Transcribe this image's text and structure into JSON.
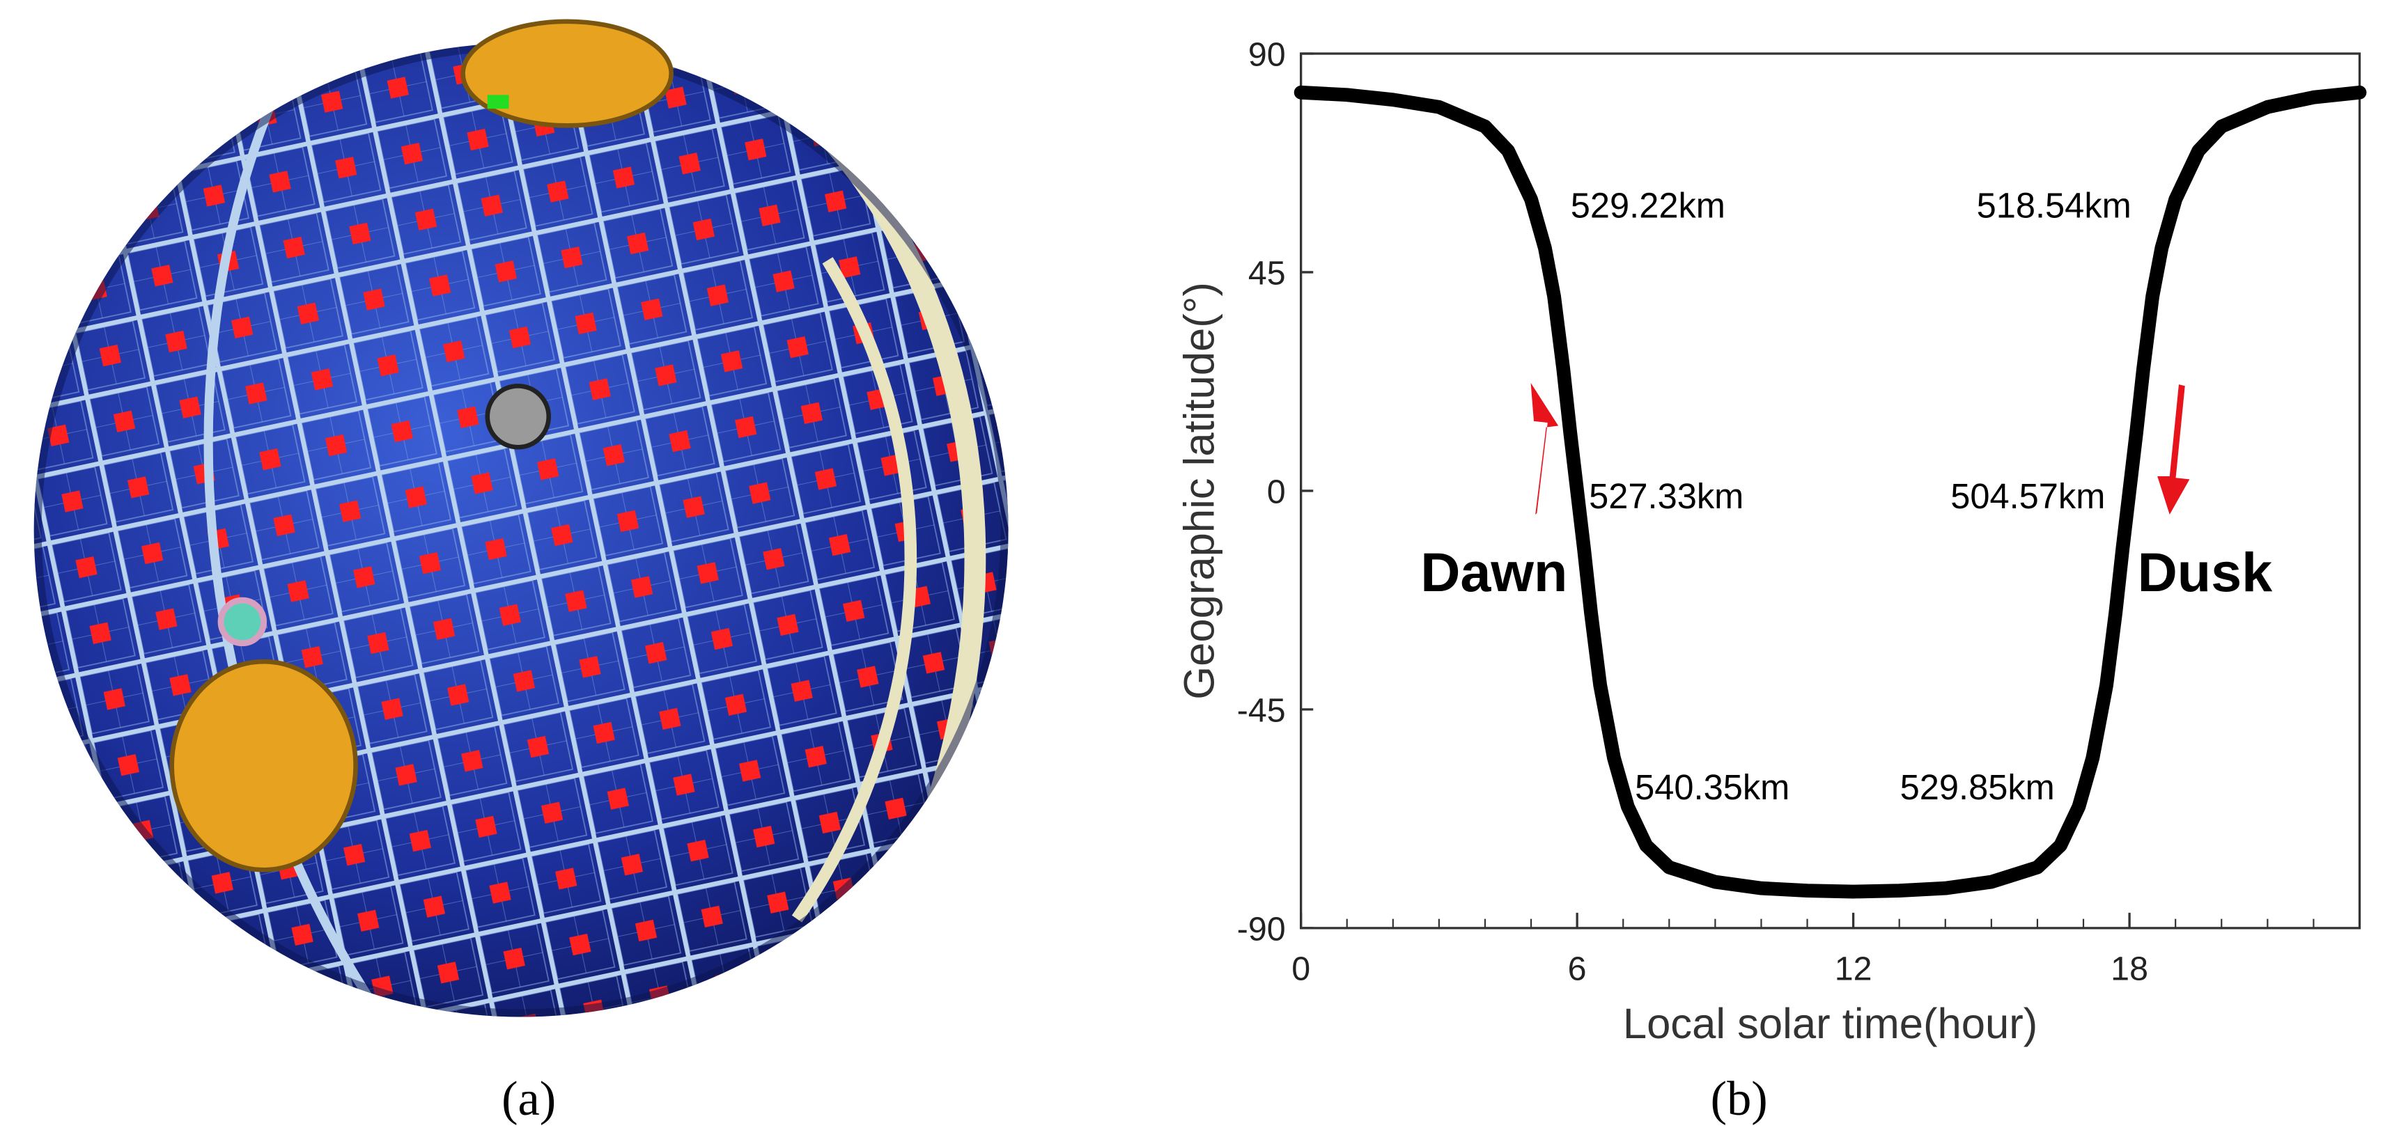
{
  "figure": {
    "panel_a_label": "(a)"
  },
  "chart_data": {
    "type": "line",
    "panel_label": "(b)",
    "xlabel": "Local solar time(hour)",
    "ylabel": "Geographic latitude(°)",
    "xlim": [
      0,
      23
    ],
    "xticks": [
      0,
      6,
      12,
      18
    ],
    "xminorticks": [
      1,
      2,
      3,
      4,
      5,
      7,
      8,
      9,
      10,
      11,
      13,
      14,
      15,
      16,
      17,
      19,
      20,
      21,
      22
    ],
    "ylim": [
      -90,
      90
    ],
    "yticks": [
      -90,
      -45,
      0,
      45,
      90
    ],
    "series": [
      {
        "color": "#000000",
        "x": [
          0,
          1,
          2,
          3,
          4,
          4.5,
          5,
          5.3,
          5.5,
          5.7,
          5.85,
          6,
          6.15,
          6.3,
          6.5,
          6.8,
          7.1,
          7.5,
          8,
          9,
          10,
          11,
          12,
          13,
          14,
          15,
          16,
          16.5,
          16.9,
          17.2,
          17.5,
          17.7,
          17.85,
          18,
          18.15,
          18.3,
          18.5,
          18.7,
          19,
          19.5,
          20,
          21,
          22,
          23
        ],
        "values": [
          82,
          81.5,
          80.5,
          79,
          75,
          70,
          60,
          50,
          40,
          25,
          12,
          0,
          -12,
          -25,
          -40,
          -55,
          -65,
          -73,
          -77.5,
          -80.5,
          -81.8,
          -82.3,
          -82.5,
          -82.3,
          -81.8,
          -80.5,
          -77.5,
          -73,
          -65,
          -55,
          -40,
          -25,
          -12,
          0,
          12,
          25,
          40,
          50,
          60,
          70,
          75,
          79,
          81,
          82
        ]
      }
    ],
    "annotations": [
      {
        "text": "529.22km"
      },
      {
        "text": "518.54km"
      },
      {
        "text": "527.33km"
      },
      {
        "text": "504.57km"
      },
      {
        "text": "540.35km"
      },
      {
        "text": "529.85km"
      },
      {
        "text": "Dawn"
      },
      {
        "text": "Dusk"
      }
    ]
  }
}
